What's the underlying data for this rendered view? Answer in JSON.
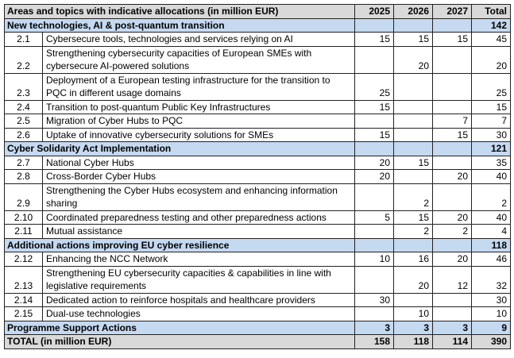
{
  "header": {
    "title": "Areas and topics with indicative allocations (in million EUR)",
    "y2025": "2025",
    "y2026": "2026",
    "y2027": "2027",
    "total": "Total"
  },
  "sections": [
    {
      "title": "New technologies, AI & post-quantum transition",
      "y2025": "",
      "y2026": "",
      "y2027": "",
      "total": "142",
      "rows": [
        {
          "code": "2.1",
          "desc": "Cybersecure tools, technologies and services relying on AI",
          "y2025": "15",
          "y2026": "15",
          "y2027": "15",
          "total": "45",
          "lines": 1
        },
        {
          "code": "2.2",
          "desc": "Strengthening cybersecurity capacities of European SMEs with cybersecure AI-powered solutions",
          "y2025": "",
          "y2026": "20",
          "y2027": "",
          "total": "20",
          "lines": 2
        },
        {
          "code": "2.3",
          "desc": "Deployment of a European testing infrastructure for the transition to PQC in different usage domains",
          "y2025": "25",
          "y2026": "",
          "y2027": "",
          "total": "25",
          "lines": 2
        },
        {
          "code": "2.4",
          "desc": "Transition to post-quantum Public Key Infrastructures",
          "y2025": "15",
          "y2026": "",
          "y2027": "",
          "total": "15",
          "lines": 1
        },
        {
          "code": "2.5",
          "desc": "Migration of Cyber Hubs to PQC",
          "y2025": "",
          "y2026": "",
          "y2027": "7",
          "total": "7",
          "lines": 1
        },
        {
          "code": "2.6",
          "desc": "Uptake of innovative cybersecurity solutions for SMEs",
          "y2025": "15",
          "y2026": "",
          "y2027": "15",
          "total": "30",
          "lines": 1
        }
      ]
    },
    {
      "title": "Cyber Solidarity Act Implementation",
      "y2025": "",
      "y2026": "",
      "y2027": "",
      "total": "121",
      "rows": [
        {
          "code": "2.7",
          "desc": "National Cyber Hubs",
          "y2025": "20",
          "y2026": "15",
          "y2027": "",
          "total": "35",
          "lines": 1
        },
        {
          "code": "2.8",
          "desc": "Cross-Border Cyber Hubs",
          "y2025": "20",
          "y2026": "",
          "y2027": "20",
          "total": "40",
          "lines": 1
        },
        {
          "code": "2.9",
          "desc": "Strengthening the Cyber Hubs ecosystem and enhancing information sharing",
          "y2025": "",
          "y2026": "2",
          "y2027": "",
          "total": "2",
          "lines": 2
        },
        {
          "code": "2.10",
          "desc": "Coordinated preparedness testing and other preparedness actions",
          "y2025": "5",
          "y2026": "15",
          "y2027": "20",
          "total": "40",
          "lines": 1
        },
        {
          "code": "2.11",
          "desc": "Mutual assistance",
          "y2025": "",
          "y2026": "2",
          "y2027": "2",
          "total": "4",
          "lines": 1
        }
      ]
    },
    {
      "title": "Additional actions improving EU cyber resilience",
      "y2025": "",
      "y2026": "",
      "y2027": "",
      "total": "118",
      "rows": [
        {
          "code": "2.12",
          "desc": "Enhancing the NCC Network",
          "y2025": "10",
          "y2026": "16",
          "y2027": "20",
          "total": "46",
          "lines": 1
        },
        {
          "code": "2.13",
          "desc": "Strengthening EU cybersecurity capacities & capabilities in line with legislative requirements",
          "y2025": "",
          "y2026": "20",
          "y2027": "12",
          "total": "32",
          "lines": 2
        },
        {
          "code": "2.14",
          "desc": "Dedicated action to reinforce hospitals and healthcare providers",
          "y2025": "30",
          "y2026": "",
          "y2027": "",
          "total": "30",
          "lines": 1
        },
        {
          "code": "2.15",
          "desc": "Dual-use technologies",
          "y2025": "",
          "y2026": "10",
          "y2027": "",
          "total": "10",
          "lines": 1
        }
      ]
    },
    {
      "title": "Programme Support Actions",
      "y2025": "3",
      "y2026": "3",
      "y2027": "3",
      "total": "9",
      "rows": []
    }
  ],
  "footer": {
    "title": "TOTAL (in million EUR)",
    "y2025": "158",
    "y2026": "118",
    "y2027": "114",
    "total": "390"
  }
}
